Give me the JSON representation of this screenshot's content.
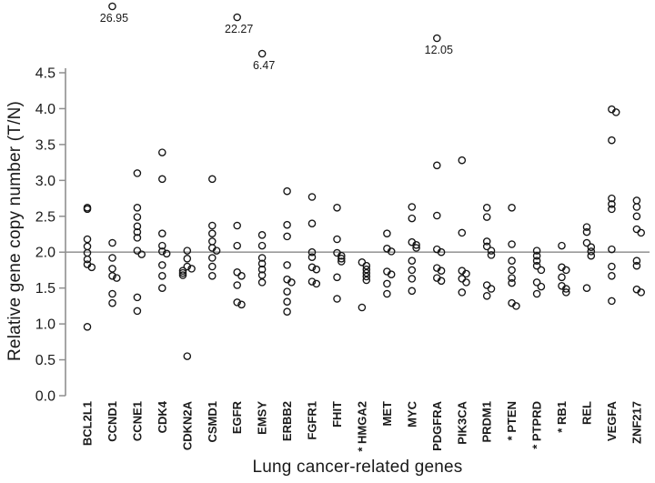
{
  "figure": {
    "y_axis_title": "Relative gene copy number (T/N)",
    "x_axis_title": "Lung cancer-related genes"
  },
  "colors": {
    "background": "#ffffff",
    "axis_line": "#8f8f8f",
    "reference_line": "#9a9a9a",
    "marker_stroke": "#151515",
    "text": "#1a1a1a"
  },
  "chart_data": {
    "type": "scatter",
    "title": "",
    "xlabel": "Lung cancer-related genes",
    "ylabel": "Relative gene copy number (T/N)",
    "ylim": [
      0,
      4.5
    ],
    "ytick_labels": [
      "0.0",
      "0.5",
      "1.0",
      "1.5",
      "2.0",
      "2.5",
      "3.0",
      "3.5",
      "4.0",
      "4.5"
    ],
    "reference_line_y": 2.0,
    "marker": "open-circle",
    "grid": false,
    "legend": "none",
    "starred_genes": [
      "HMGA2",
      "PTEN",
      "PTPRD",
      "RB1"
    ],
    "series": [
      {
        "name": "BCL2L1",
        "starred": false,
        "values": [
          2.62,
          2.6,
          2.18,
          2.08,
          1.99,
          1.9,
          1.83,
          1.79,
          0.96
        ],
        "outlier": null,
        "outlier_label": ""
      },
      {
        "name": "CCND1",
        "starred": false,
        "values": [
          2.13,
          1.92,
          1.77,
          1.67,
          1.64,
          1.42,
          1.29
        ],
        "outlier": 26.95,
        "outlier_label": "26.95"
      },
      {
        "name": "CCNE1",
        "starred": false,
        "values": [
          3.1,
          2.62,
          2.49,
          2.36,
          2.28,
          2.2,
          2.02,
          1.97,
          1.37,
          1.18
        ],
        "outlier": null,
        "outlier_label": ""
      },
      {
        "name": "CDK4",
        "starred": false,
        "values": [
          3.39,
          3.02,
          2.26,
          2.09,
          2.01,
          1.98,
          1.82,
          1.67,
          1.5
        ],
        "outlier": null,
        "outlier_label": ""
      },
      {
        "name": "CDKN2A",
        "starred": false,
        "values": [
          2.02,
          1.91,
          1.8,
          1.77,
          1.74,
          1.71,
          1.68,
          0.55
        ],
        "outlier": null,
        "outlier_label": ""
      },
      {
        "name": "CSMD1",
        "starred": false,
        "values": [
          3.02,
          2.37,
          2.26,
          2.15,
          2.06,
          2.02,
          1.92,
          1.8,
          1.67
        ],
        "outlier": null,
        "outlier_label": ""
      },
      {
        "name": "EGFR",
        "starred": false,
        "values": [
          2.37,
          2.09,
          1.72,
          1.67,
          1.54,
          1.3,
          1.27
        ],
        "outlier": 22.27,
        "outlier_label": "22.27"
      },
      {
        "name": "EMSY",
        "starred": false,
        "values": [
          2.24,
          2.09,
          1.92,
          1.84,
          1.76,
          1.68,
          1.58
        ],
        "outlier": 6.47,
        "outlier_label": "6.47"
      },
      {
        "name": "ERBB2",
        "starred": false,
        "values": [
          2.85,
          2.38,
          2.22,
          1.82,
          1.62,
          1.58,
          1.45,
          1.31,
          1.17
        ],
        "outlier": null,
        "outlier_label": ""
      },
      {
        "name": "FGFR1",
        "starred": false,
        "values": [
          2.77,
          2.4,
          2.0,
          1.93,
          1.79,
          1.76,
          1.59,
          1.56
        ],
        "outlier": null,
        "outlier_label": ""
      },
      {
        "name": "FHIT",
        "starred": false,
        "values": [
          2.62,
          2.18,
          1.99,
          1.95,
          1.91,
          1.87,
          1.65,
          1.35
        ],
        "outlier": null,
        "outlier_label": ""
      },
      {
        "name": "HMGA2",
        "starred": true,
        "values": [
          1.86,
          1.81,
          1.76,
          1.71,
          1.66,
          1.61,
          1.23
        ],
        "outlier": null,
        "outlier_label": ""
      },
      {
        "name": "MET",
        "starred": false,
        "values": [
          2.26,
          2.05,
          2.01,
          1.73,
          1.69,
          1.56,
          1.42
        ],
        "outlier": null,
        "outlier_label": ""
      },
      {
        "name": "MYC",
        "starred": false,
        "values": [
          2.63,
          2.47,
          2.14,
          2.1,
          2.06,
          1.88,
          1.75,
          1.63,
          1.46
        ],
        "outlier": null,
        "outlier_label": ""
      },
      {
        "name": "PDGFRA",
        "starred": false,
        "values": [
          3.21,
          2.51,
          2.04,
          2.0,
          1.78,
          1.74,
          1.64,
          1.6
        ],
        "outlier": 12.05,
        "outlier_label": "12.05"
      },
      {
        "name": "PIK3CA",
        "starred": false,
        "values": [
          3.28,
          2.27,
          1.74,
          1.7,
          1.63,
          1.58,
          1.44
        ],
        "outlier": null,
        "outlier_label": ""
      },
      {
        "name": "PRDM1",
        "starred": false,
        "values": [
          2.62,
          2.49,
          2.15,
          2.08,
          2.02,
          1.96,
          1.54,
          1.49,
          1.39
        ],
        "outlier": null,
        "outlier_label": ""
      },
      {
        "name": "PTEN",
        "starred": true,
        "values": [
          2.62,
          2.11,
          1.88,
          1.75,
          1.64,
          1.57,
          1.29,
          1.25
        ],
        "outlier": null,
        "outlier_label": ""
      },
      {
        "name": "PTPRD",
        "starred": true,
        "values": [
          2.02,
          1.95,
          1.88,
          1.81,
          1.75,
          1.58,
          1.52,
          1.42
        ],
        "outlier": null,
        "outlier_label": ""
      },
      {
        "name": "RB1",
        "starred": true,
        "values": [
          2.09,
          1.79,
          1.75,
          1.65,
          1.53,
          1.49,
          1.44
        ],
        "outlier": null,
        "outlier_label": ""
      },
      {
        "name": "REL",
        "starred": false,
        "values": [
          2.35,
          2.28,
          2.13,
          2.07,
          2.01,
          1.95,
          1.5
        ],
        "outlier": null,
        "outlier_label": ""
      },
      {
        "name": "VEGFA",
        "starred": false,
        "values": [
          3.99,
          3.95,
          3.56,
          2.75,
          2.67,
          2.6,
          2.04,
          1.8,
          1.67,
          1.32
        ],
        "outlier": null,
        "outlier_label": ""
      },
      {
        "name": "ZNF217",
        "starred": false,
        "values": [
          2.72,
          2.63,
          2.5,
          2.32,
          2.27,
          1.88,
          1.81,
          1.48,
          1.44
        ],
        "outlier": null,
        "outlier_label": ""
      }
    ]
  }
}
